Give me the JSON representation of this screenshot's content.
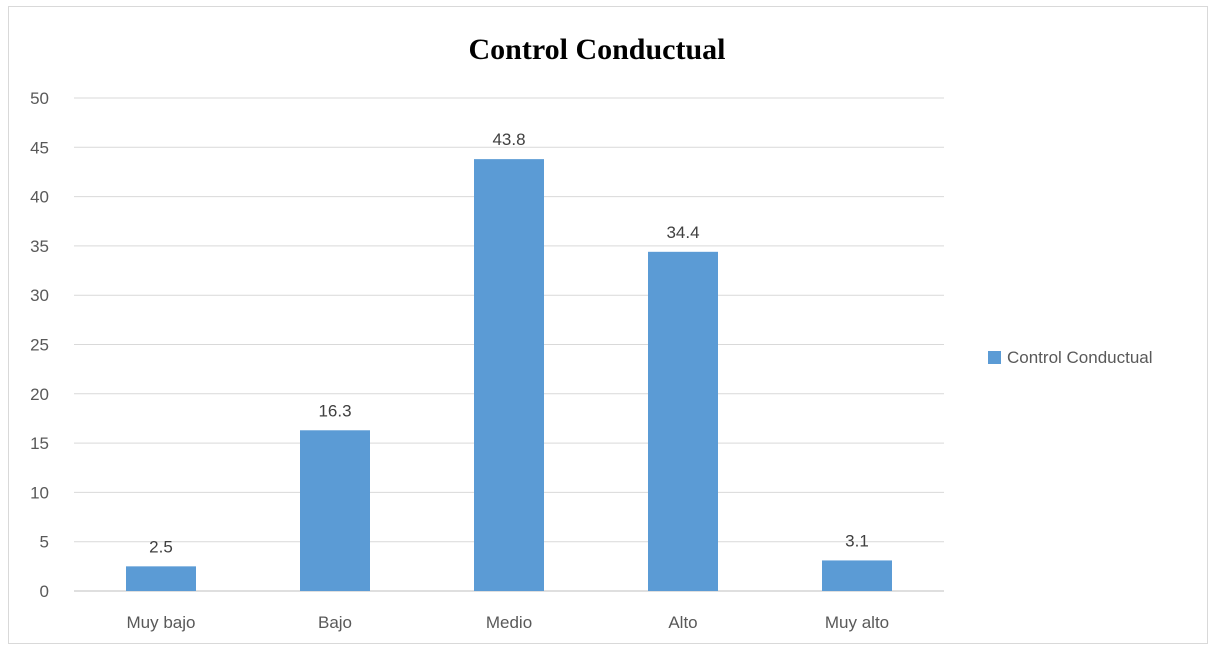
{
  "chart_data": {
    "type": "bar",
    "title": "Control Conductual",
    "xlabel": "",
    "ylabel": "",
    "categories": [
      "Muy bajo",
      "Bajo",
      "Medio",
      "Alto",
      "Muy alto"
    ],
    "series": [
      {
        "name": "Control Conductual",
        "values": [
          2.5,
          16.3,
          43.8,
          34.4,
          3.1
        ],
        "color": "#5b9bd5"
      }
    ],
    "data_labels": [
      "2.5",
      "16.3",
      "43.8",
      "34.4",
      "3.1"
    ],
    "ylim": [
      0,
      50
    ],
    "yticks": [
      "0",
      "5",
      "10",
      "15",
      "20",
      "25",
      "30",
      "35",
      "40",
      "45",
      "50"
    ],
    "grid": true,
    "legend_position": "right"
  }
}
